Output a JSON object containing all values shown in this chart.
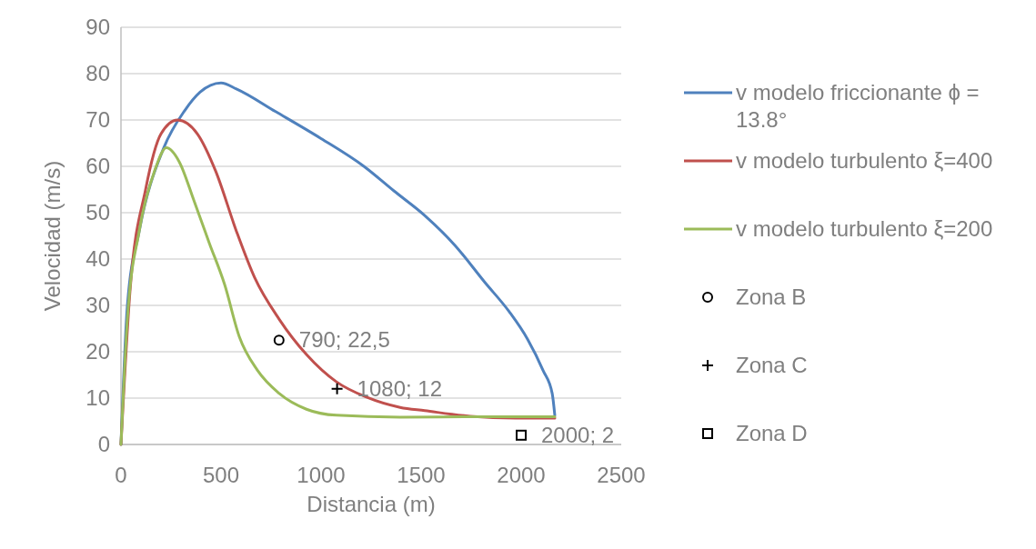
{
  "chart_data": {
    "type": "line",
    "xlabel": "Distancia (m)",
    "ylabel": "Velocidad (m/s)",
    "xlim": [
      0,
      2500
    ],
    "xticks": [
      0,
      500,
      1000,
      1500,
      2000,
      2500
    ],
    "ylim": [
      0,
      90
    ],
    "yticks": [
      0,
      10,
      20,
      30,
      40,
      50,
      60,
      70,
      80,
      90
    ],
    "grid": "y",
    "legend": "right",
    "series": [
      {
        "name": "v modelo friccionante ϕ = 13.8°",
        "color": "#4f81bd",
        "marker": "none",
        "x": [
          0,
          32,
          91,
          214,
          318,
          395,
          500,
          577,
          773,
          1000,
          1214,
          1364,
          1518,
          1668,
          1818,
          1941,
          2032,
          2109,
          2155,
          2168
        ],
        "values": [
          0,
          30,
          46,
          64,
          72,
          76,
          78,
          76.7,
          71.8,
          66,
          60,
          54.7,
          49.4,
          43,
          35,
          28.6,
          22.7,
          16,
          11,
          6.3
        ]
      },
      {
        "name": "v modelo turbulento ξ=400",
        "color": "#c0504d",
        "marker": "none",
        "x": [
          0,
          45,
          123,
          200,
          282,
          382,
          473,
          577,
          668,
          791,
          927,
          1077,
          1227,
          1395,
          1518,
          1745,
          1973,
          2168
        ],
        "values": [
          0,
          33,
          55,
          67,
          70,
          67,
          59,
          46,
          36,
          27,
          19.4,
          13.5,
          10.2,
          8,
          7.3,
          6.1,
          5.7,
          5.7
        ]
      },
      {
        "name": "v modelo turbulento ξ=200",
        "color": "#9bbb59",
        "marker": "none",
        "x": [
          0,
          32,
          91,
          168,
          227,
          291,
          364,
          441,
          518,
          591,
          682,
          791,
          927,
          1077,
          1395,
          1800,
          2168
        ],
        "values": [
          0,
          27,
          46,
          59,
          64,
          61,
          52.7,
          43.5,
          34.5,
          23.3,
          16,
          11,
          7.6,
          6.3,
          5.9,
          6,
          6
        ]
      },
      {
        "name": "Zona B",
        "type": "scatter",
        "color": "#000000",
        "marker": "circle",
        "x": [
          790
        ],
        "values": [
          22.5
        ],
        "value_labels": [
          "790; 22,5"
        ]
      },
      {
        "name": "Zona C",
        "type": "scatter",
        "color": "#000000",
        "marker": "cross",
        "x": [
          1080
        ],
        "values": [
          12
        ],
        "value_labels": [
          "1080; 12"
        ]
      },
      {
        "name": "Zona D",
        "type": "scatter",
        "color": "#000000",
        "marker": "square",
        "x": [
          2000
        ],
        "values": [
          2
        ],
        "value_labels": [
          "2000; 2"
        ]
      }
    ]
  }
}
